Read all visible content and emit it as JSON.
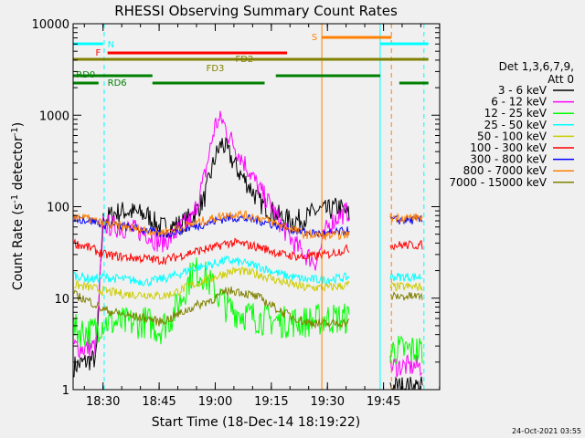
{
  "chart_data": {
    "type": "line",
    "title": "RHESSI Observing Summary Count Rates",
    "xlabel": "Start Time (18-Dec-14 18:19:22)",
    "ylabel_prefix": "Count Rate (s",
    "ylabel_sup": "-1",
    "ylabel_mid": " detector",
    "ylabel_suffix": ")",
    "x_range_minutes": [
      18.3667,
      20.0
    ],
    "y_scale": "log",
    "ylim": [
      1,
      10000
    ],
    "x_ticks": [
      {
        "value": 18.5,
        "label": "18:30"
      },
      {
        "value": 18.75,
        "label": "18:45"
      },
      {
        "value": 19.0,
        "label": "19:00"
      },
      {
        "value": 19.25,
        "label": "19:15"
      },
      {
        "value": 19.5,
        "label": "19:30"
      },
      {
        "value": 19.75,
        "label": "19:45"
      }
    ],
    "y_ticks": [
      {
        "value": 1,
        "label": "1"
      },
      {
        "value": 10,
        "label": "10"
      },
      {
        "value": 100,
        "label": "100"
      },
      {
        "value": 1000,
        "label": "1000"
      },
      {
        "value": 10000,
        "label": "10000"
      }
    ],
    "legend_header": [
      "Det 1,3,6,7,9,",
      "Att 0"
    ],
    "legend_position": "right",
    "series": [
      {
        "name": "3 - 6 keV",
        "color": "#000000",
        "points": [
          [
            18.37,
            1.8
          ],
          [
            18.42,
            2.0
          ],
          [
            18.47,
            2.2
          ],
          [
            18.5,
            70
          ],
          [
            18.55,
            85
          ],
          [
            18.6,
            90
          ],
          [
            18.65,
            85
          ],
          [
            18.7,
            80
          ],
          [
            18.75,
            60
          ],
          [
            18.8,
            60
          ],
          [
            18.85,
            65
          ],
          [
            18.9,
            80
          ],
          [
            18.95,
            120
          ],
          [
            19.0,
            350
          ],
          [
            19.03,
            500
          ],
          [
            19.06,
            380
          ],
          [
            19.1,
            250
          ],
          [
            19.15,
            170
          ],
          [
            19.2,
            110
          ],
          [
            19.25,
            90
          ],
          [
            19.3,
            75
          ],
          [
            19.35,
            70
          ],
          [
            19.4,
            75
          ],
          [
            19.45,
            90
          ],
          [
            19.5,
            90
          ],
          [
            19.55,
            100
          ],
          [
            19.6,
            80
          ]
        ]
      },
      {
        "name": "6 - 12 keV",
        "color": "#ff00ff",
        "points": [
          [
            18.37,
            3.0
          ],
          [
            18.42,
            2.8
          ],
          [
            18.47,
            3.0
          ],
          [
            18.5,
            65
          ],
          [
            18.55,
            60
          ],
          [
            18.6,
            58
          ],
          [
            18.65,
            55
          ],
          [
            18.7,
            50
          ],
          [
            18.75,
            40
          ],
          [
            18.8,
            45
          ],
          [
            18.85,
            60
          ],
          [
            18.9,
            75
          ],
          [
            18.95,
            200
          ],
          [
            19.0,
            800
          ],
          [
            19.03,
            900
          ],
          [
            19.06,
            600
          ],
          [
            19.1,
            400
          ],
          [
            19.15,
            250
          ],
          [
            19.2,
            150
          ],
          [
            19.25,
            100
          ],
          [
            19.3,
            60
          ],
          [
            19.35,
            40
          ],
          [
            19.4,
            30
          ],
          [
            19.45,
            25
          ],
          [
            19.5,
            60
          ],
          [
            19.55,
            80
          ],
          [
            19.6,
            90
          ]
        ]
      },
      {
        "name": "12 - 25 keV",
        "color": "#00ff00",
        "points": [
          [
            18.37,
            4.5
          ],
          [
            18.45,
            4.2
          ],
          [
            18.5,
            5.5
          ],
          [
            18.6,
            5.3
          ],
          [
            18.7,
            5.5
          ],
          [
            18.75,
            4.5
          ],
          [
            18.8,
            6
          ],
          [
            18.85,
            10
          ],
          [
            18.9,
            20
          ],
          [
            18.95,
            18
          ],
          [
            19.0,
            12
          ],
          [
            19.05,
            8
          ],
          [
            19.1,
            7
          ],
          [
            19.2,
            6
          ],
          [
            19.3,
            5.5
          ],
          [
            19.4,
            5.5
          ],
          [
            19.5,
            6
          ],
          [
            19.6,
            6
          ]
        ]
      },
      {
        "name": "25 - 50 keV",
        "color": "#00ffff",
        "points": [
          [
            18.37,
            18
          ],
          [
            18.45,
            16
          ],
          [
            18.5,
            17
          ],
          [
            18.6,
            16
          ],
          [
            18.7,
            15
          ],
          [
            18.75,
            16
          ],
          [
            18.8,
            17
          ],
          [
            18.9,
            21
          ],
          [
            19.0,
            24
          ],
          [
            19.05,
            26
          ],
          [
            19.1,
            25
          ],
          [
            19.2,
            22
          ],
          [
            19.3,
            18
          ],
          [
            19.4,
            16
          ],
          [
            19.5,
            16
          ],
          [
            19.6,
            17
          ]
        ]
      },
      {
        "name": "50 - 100 keV",
        "color": "#cccc00",
        "points": [
          [
            18.37,
            14
          ],
          [
            18.45,
            13
          ],
          [
            18.5,
            12
          ],
          [
            18.6,
            11
          ],
          [
            18.7,
            11
          ],
          [
            18.75,
            10.5
          ],
          [
            18.8,
            11
          ],
          [
            18.9,
            14
          ],
          [
            19.0,
            17
          ],
          [
            19.05,
            19
          ],
          [
            19.1,
            20
          ],
          [
            19.2,
            18
          ],
          [
            19.3,
            15
          ],
          [
            19.4,
            13
          ],
          [
            19.5,
            13
          ],
          [
            19.6,
            14
          ]
        ]
      },
      {
        "name": "100 - 300 keV",
        "color": "#ff0000",
        "points": [
          [
            18.37,
            40
          ],
          [
            18.45,
            35
          ],
          [
            18.5,
            30
          ],
          [
            18.6,
            28
          ],
          [
            18.7,
            27
          ],
          [
            18.75,
            26
          ],
          [
            18.8,
            27
          ],
          [
            18.9,
            32
          ],
          [
            19.0,
            36
          ],
          [
            19.05,
            40
          ],
          [
            19.1,
            40
          ],
          [
            19.2,
            36
          ],
          [
            19.3,
            30
          ],
          [
            19.4,
            28
          ],
          [
            19.5,
            30
          ],
          [
            19.6,
            35
          ]
        ]
      },
      {
        "name": "300 - 800 keV",
        "color": "#0000ff",
        "points": [
          [
            18.37,
            75
          ],
          [
            18.45,
            70
          ],
          [
            18.5,
            65
          ],
          [
            18.6,
            60
          ],
          [
            18.7,
            55
          ],
          [
            18.75,
            50
          ],
          [
            18.8,
            52
          ],
          [
            18.9,
            60
          ],
          [
            19.0,
            70
          ],
          [
            19.05,
            75
          ],
          [
            19.1,
            76
          ],
          [
            19.2,
            70
          ],
          [
            19.3,
            60
          ],
          [
            19.4,
            52
          ],
          [
            19.5,
            50
          ],
          [
            19.6,
            55
          ]
        ]
      },
      {
        "name": "800 - 7000 keV",
        "color": "#ff8000",
        "points": [
          [
            18.37,
            80
          ],
          [
            18.45,
            72
          ],
          [
            18.5,
            65
          ],
          [
            18.6,
            60
          ],
          [
            18.7,
            55
          ],
          [
            18.75,
            52
          ],
          [
            18.8,
            55
          ],
          [
            18.9,
            65
          ],
          [
            19.0,
            75
          ],
          [
            19.05,
            82
          ],
          [
            19.1,
            83
          ],
          [
            19.2,
            75
          ],
          [
            19.3,
            62
          ],
          [
            19.4,
            50
          ],
          [
            19.5,
            48
          ],
          [
            19.6,
            50
          ]
        ]
      },
      {
        "name": "7000 - 15000 keV",
        "color": "#808000",
        "points": [
          [
            18.37,
            11
          ],
          [
            18.45,
            9
          ],
          [
            18.5,
            7.5
          ],
          [
            18.6,
            6.5
          ],
          [
            18.7,
            6
          ],
          [
            18.75,
            5.5
          ],
          [
            18.8,
            6
          ],
          [
            18.9,
            8
          ],
          [
            19.0,
            10
          ],
          [
            19.05,
            12
          ],
          [
            19.1,
            12
          ],
          [
            19.2,
            10
          ],
          [
            19.3,
            7
          ],
          [
            19.4,
            5.5
          ],
          [
            19.5,
            5.2
          ],
          [
            19.6,
            5.5
          ]
        ]
      }
    ],
    "annotations": [
      {
        "label": "N",
        "color": "#00ffff"
      },
      {
        "label": "F",
        "color": "#ff0000"
      },
      {
        "label": "FD2",
        "color": "#808000"
      },
      {
        "label": "FD3",
        "color": "#808000"
      },
      {
        "label": "RD0",
        "color": "#008000"
      },
      {
        "label": "RD6",
        "color": "#008000"
      },
      {
        "label": "S",
        "color": "#ff8000"
      }
    ],
    "timestamp": "24-Oct-2021 03:55"
  }
}
